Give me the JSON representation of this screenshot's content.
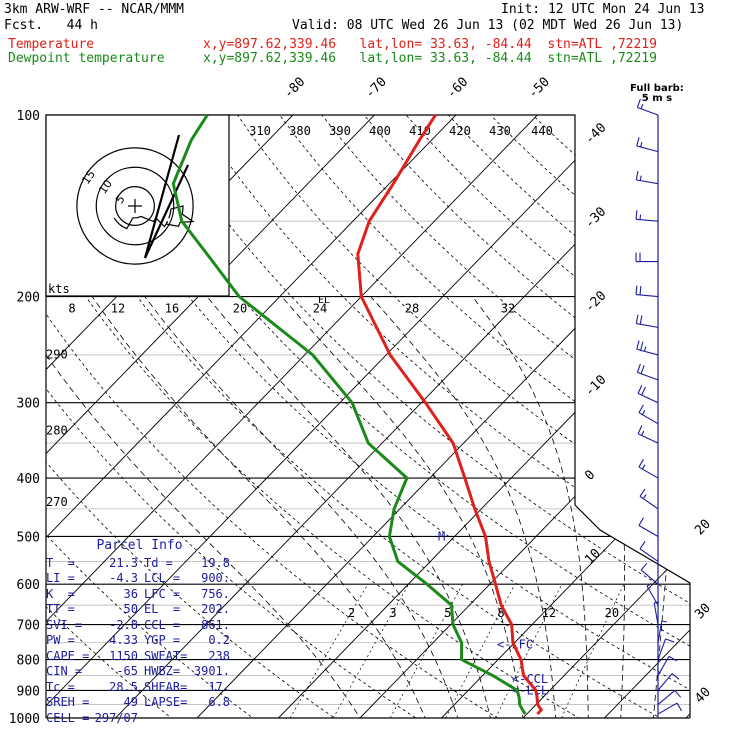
{
  "header": {
    "model": "3km ARW-WRF -- NCAR/MMM",
    "init": "Init: 12 UTC Mon 24 Jun 13",
    "fcst": "Fcst.   44 h",
    "valid": "Valid: 08 UTC Wed 26 Jun 13 (02 MDT Wed 26 Jun 13)",
    "temp_label": "Temperature",
    "temp_loc": "x,y=897.62,339.46   lat,lon= 33.63, -84.44  stn=ATL ,72219",
    "dew_label": "Dewpoint temperature",
    "dew_loc": "x,y=897.62,339.46   lat,lon= 33.63, -84.44  stn=ATL ,72219"
  },
  "barb_header": {
    "line1": "Full barb:",
    "line2": "5 m s"
  },
  "parcel_info": {
    "title": "Parcel Info",
    "rows": [
      {
        "k1": "T  =",
        "v1": "21.3",
        "k2": "Td =",
        "v2": "19.8"
      },
      {
        "k1": "LI =",
        "v1": "-4.3",
        "k2": "LCL =",
        "v2": "900."
      },
      {
        "k1": "K  =",
        "v1": "36",
        "k2": "LFC =",
        "v2": "756."
      },
      {
        "k1": "TT =",
        "v1": "50",
        "k2": "EL  =",
        "v2": "202."
      },
      {
        "k1": "SVI =",
        "v1": "-2.8",
        "k2": "CCL =",
        "v2": "861."
      },
      {
        "k1": "PW =",
        "v1": "4.33",
        "k2": "YGP =",
        "v2": "0.2"
      },
      {
        "k1": "CAPE =",
        "v1": "1150",
        "k2": "SWEAT=",
        "v2": "238"
      },
      {
        "k1": "CIN =",
        "v1": "-65",
        "k2": "HWBZ=",
        "v2": "3901."
      },
      {
        "k1": "Tc =",
        "v1": "28.5",
        "k2": "SHEAR=",
        "v2": "17."
      },
      {
        "k1": "SREH =",
        "v1": "49",
        "k2": "LAPSE=",
        "v2": "6.8"
      },
      {
        "k1": "CELL =",
        "v1": "297/07",
        "k2": "",
        "v2": ""
      }
    ]
  },
  "chart_data": {
    "type": "line",
    "diagram": "skew-T log-P",
    "y_axis": {
      "scale": "log",
      "ylim": [
        1000,
        100
      ],
      "tick_labels": [
        100,
        200,
        300,
        400,
        500,
        600,
        700,
        800,
        900,
        1000
      ]
    },
    "isotherm_labels": [
      -80,
      -70,
      -60,
      -50,
      -40,
      -30,
      -20,
      -10,
      0,
      10,
      20,
      30,
      40
    ],
    "theta_labels": [
      310,
      380,
      390,
      400,
      410,
      420,
      430,
      440
    ],
    "wind_speed_labels": [
      8,
      12,
      16,
      20,
      24,
      28,
      32
    ],
    "dry_adiabat_labels": [
      290,
      280,
      270
    ],
    "mixing_ratio_labels": [
      2,
      3,
      5,
      8,
      12,
      20
    ],
    "annotations": [
      "EL",
      "M",
      "<-LFC",
      "<-CCL",
      "<-LCL"
    ],
    "hodograph": {
      "units": "kts",
      "ring_labels": [
        5,
        10,
        15
      ]
    },
    "series": [
      {
        "name": "Temperature",
        "color": "#e0201a",
        "points": [
          [
            985,
            21.3
          ],
          [
            970,
            21.3
          ],
          [
            950,
            20.2
          ],
          [
            925,
            19.3
          ],
          [
            900,
            18.3
          ],
          [
            850,
            15.0
          ],
          [
            800,
            12.8
          ],
          [
            750,
            9.8
          ],
          [
            700,
            7.5
          ],
          [
            650,
            3.9
          ],
          [
            600,
            0.7
          ],
          [
            550,
            -2.8
          ],
          [
            500,
            -6.2
          ],
          [
            450,
            -10.8
          ],
          [
            400,
            -15.7
          ],
          [
            350,
            -21.3
          ],
          [
            300,
            -29.5
          ],
          [
            250,
            -39.5
          ],
          [
            200,
            -50.0
          ],
          [
            170,
            -55.5
          ],
          [
            150,
            -58.0
          ],
          [
            130,
            -59.5
          ],
          [
            110,
            -61.5
          ],
          [
            100,
            -62.5
          ]
        ]
      },
      {
        "name": "Dewpoint temperature",
        "color": "#1a8a1a",
        "points": [
          [
            985,
            19.8
          ],
          [
            970,
            19.0
          ],
          [
            950,
            18.0
          ],
          [
            925,
            17.1
          ],
          [
            900,
            16.0
          ],
          [
            850,
            11.2
          ],
          [
            800,
            5.5
          ],
          [
            750,
            3.5
          ],
          [
            700,
            0.3
          ],
          [
            650,
            -2.2
          ],
          [
            600,
            -7.7
          ],
          [
            550,
            -14.0
          ],
          [
            500,
            -18.0
          ],
          [
            450,
            -20.7
          ],
          [
            400,
            -22.8
          ],
          [
            350,
            -31.7
          ],
          [
            300,
            -38.5
          ],
          [
            250,
            -49.0
          ],
          [
            200,
            -65.0
          ],
          [
            170,
            -74.0
          ],
          [
            150,
            -81.0
          ],
          [
            130,
            -86.5
          ],
          [
            110,
            -89.5
          ],
          [
            100,
            -90.5
          ]
        ]
      }
    ],
    "wind_barbs": [
      {
        "p": 100,
        "dir": 290,
        "spd": 15
      },
      {
        "p": 115,
        "dir": 285,
        "spd": 15
      },
      {
        "p": 130,
        "dir": 280,
        "spd": 15
      },
      {
        "p": 150,
        "dir": 275,
        "spd": 15
      },
      {
        "p": 175,
        "dir": 270,
        "spd": 20
      },
      {
        "p": 200,
        "dir": 275,
        "spd": 20
      },
      {
        "p": 225,
        "dir": 280,
        "spd": 20
      },
      {
        "p": 250,
        "dir": 285,
        "spd": 25
      },
      {
        "p": 275,
        "dir": 290,
        "spd": 20
      },
      {
        "p": 300,
        "dir": 295,
        "spd": 20
      },
      {
        "p": 325,
        "dir": 300,
        "spd": 15
      },
      {
        "p": 350,
        "dir": 295,
        "spd": 15
      },
      {
        "p": 400,
        "dir": 300,
        "spd": 15
      },
      {
        "p": 450,
        "dir": 305,
        "spd": 15
      },
      {
        "p": 500,
        "dir": 300,
        "spd": 10
      },
      {
        "p": 550,
        "dir": 305,
        "spd": 10
      },
      {
        "p": 600,
        "dir": 310,
        "spd": 10
      },
      {
        "p": 650,
        "dir": 330,
        "spd": 5
      },
      {
        "p": 700,
        "dir": 350,
        "spd": 5
      },
      {
        "p": 750,
        "dir": 10,
        "spd": 5
      },
      {
        "p": 800,
        "dir": 20,
        "spd": 10
      },
      {
        "p": 850,
        "dir": 30,
        "spd": 10
      },
      {
        "p": 900,
        "dir": 40,
        "spd": 10
      },
      {
        "p": 950,
        "dir": 50,
        "spd": 10
      },
      {
        "p": 985,
        "dir": 60,
        "spd": 10
      }
    ]
  }
}
